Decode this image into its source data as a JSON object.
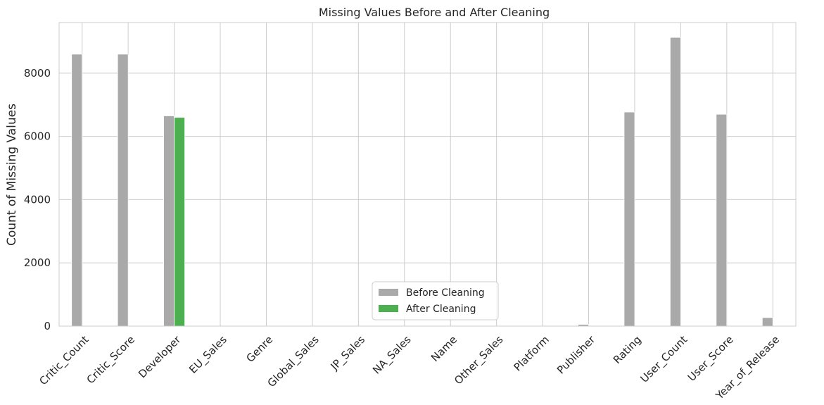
{
  "chart_data": {
    "type": "bar",
    "title": "Missing Values Before and After Cleaning",
    "xlabel": "",
    "ylabel": "Count of Missing Values",
    "categories": [
      "Critic_Count",
      "Critic_Score",
      "Developer",
      "EU_Sales",
      "Genre",
      "Global_Sales",
      "JP_Sales",
      "NA_Sales",
      "Name",
      "Other_Sales",
      "Platform",
      "Publisher",
      "Rating",
      "User_Count",
      "User_Score",
      "Year_of_Release"
    ],
    "series": [
      {
        "name": "Before Cleaning",
        "color": "#a9a9a9",
        "values": [
          8600,
          8600,
          6650,
          0,
          2,
          0,
          0,
          0,
          2,
          0,
          0,
          55,
          6770,
          9130,
          6700,
          270
        ]
      },
      {
        "name": "After Cleaning",
        "color": "#4caf50",
        "values": [
          0,
          0,
          6600,
          0,
          0,
          0,
          0,
          0,
          0,
          0,
          0,
          0,
          0,
          0,
          0,
          0
        ]
      }
    ],
    "ylim": [
      0,
      9600
    ],
    "yticks": [
      0,
      2000,
      4000,
      6000,
      8000
    ],
    "grid": true,
    "legend_position": "lower-center"
  }
}
